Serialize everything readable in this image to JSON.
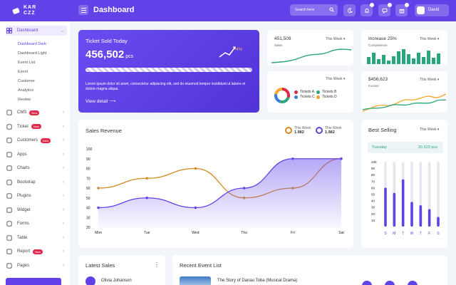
{
  "header": {
    "brand_line1": "KAR",
    "brand_line2": "CZZ",
    "title": "Dashboard",
    "search_placeholder": "Search here",
    "user_name": "David"
  },
  "sidebar": {
    "dashboard_label": "Dashboard",
    "sub_items": [
      "Dashboard Dark",
      "Dashboard Light",
      "Event List",
      "Event",
      "Customer",
      "Analytics",
      "Review"
    ],
    "items": [
      {
        "label": "CMS",
        "badge": "New",
        "icon": "gear-icon"
      },
      {
        "label": "Ticket",
        "badge": "New",
        "icon": "ticket-icon"
      },
      {
        "label": "Customers",
        "badge": "New",
        "icon": "user-icon"
      },
      {
        "label": "Apps",
        "badge": "",
        "icon": "apps-icon"
      },
      {
        "label": "Charts",
        "badge": "",
        "icon": "chart-icon"
      },
      {
        "label": "Bootstrap",
        "badge": "",
        "icon": "bootstrap-icon"
      },
      {
        "label": "Plugins",
        "badge": "",
        "icon": "plugin-icon"
      },
      {
        "label": "Widget",
        "badge": "",
        "icon": "widget-icon"
      },
      {
        "label": "Forms",
        "badge": "",
        "icon": "form-icon"
      },
      {
        "label": "Table",
        "badge": "",
        "icon": "table-icon"
      },
      {
        "label": "Report",
        "badge": "New",
        "icon": "report-icon"
      },
      {
        "label": "Pages",
        "badge": "",
        "icon": "pages-icon"
      }
    ]
  },
  "ticket_card": {
    "title": "Ticket Sold Today",
    "value": "456,502",
    "unit": "pcs",
    "change": "+4%",
    "progress": 1.0,
    "description": "Lorem ipsum dolor sit amet, consectetur adipiscing elit, sed do eiusmod tempor incididunt ut labore et dolore magna aliqua.",
    "link": "View detail"
  },
  "kpi_sales": {
    "value": "451,509",
    "label": "Sales",
    "period": "This Week"
  },
  "kpi_increase": {
    "value": "Increase 25%",
    "label": "Comparisson",
    "period": "This Week"
  },
  "kpi_tickets": {
    "period": "This Week",
    "legend": [
      {
        "name": "Tickets A",
        "color": "#e0284a"
      },
      {
        "name": "Tickets B",
        "color": "#2aa67e"
      },
      {
        "name": "Tickets C",
        "color": "#3b7ddd"
      },
      {
        "name": "Tickets D",
        "color": "#f2a82c"
      }
    ]
  },
  "kpi_income": {
    "value": "$456,623",
    "label": "Income",
    "period": "This Week"
  },
  "sales_revenue": {
    "title": "Sales Revenue",
    "legend": [
      {
        "label": "This Week",
        "value": "1.982",
        "color": "#d38a1f"
      },
      {
        "label": "This Week",
        "value": "1.982",
        "color": "#6241e8"
      }
    ]
  },
  "chart_data": [
    {
      "type": "line",
      "title": "Sales Revenue",
      "categories": [
        "Mon",
        "Tue",
        "Wed",
        "Thu",
        "Fri",
        "Sat"
      ],
      "yticks": [
        20,
        30,
        40,
        50,
        60,
        70,
        80,
        90,
        100
      ],
      "ylim": [
        20,
        100
      ],
      "series": [
        {
          "values": [
            60,
            70,
            80,
            50,
            60,
            90
          ],
          "color": "#d38a1f"
        },
        {
          "values": [
            40,
            50,
            40,
            60,
            90,
            90
          ],
          "color": "#6241e8",
          "area": true
        }
      ]
    },
    {
      "type": "bar",
      "title": "Best Selling",
      "categories": [
        "S",
        "M",
        "T",
        "W",
        "T",
        "F",
        "S"
      ],
      "yticks": [
        10,
        20,
        30,
        40,
        50,
        60,
        70,
        80,
        90,
        100
      ],
      "ylim": [
        0,
        100
      ],
      "series": [
        {
          "values": [
            60,
            52,
            73,
            38,
            33,
            27,
            15
          ],
          "color": "#6241e8"
        }
      ]
    }
  ],
  "best_selling": {
    "title": "Best Selling",
    "period": "This Week",
    "day": "Tuesday",
    "value": "20,523 pcs"
  },
  "latest_sales": {
    "title": "Latest Sales",
    "first_name": "Olivia Johanson"
  },
  "recent_events": {
    "title": "Recent Event List",
    "first_event": "The Story of Danau Toba (Musical Drama)"
  }
}
